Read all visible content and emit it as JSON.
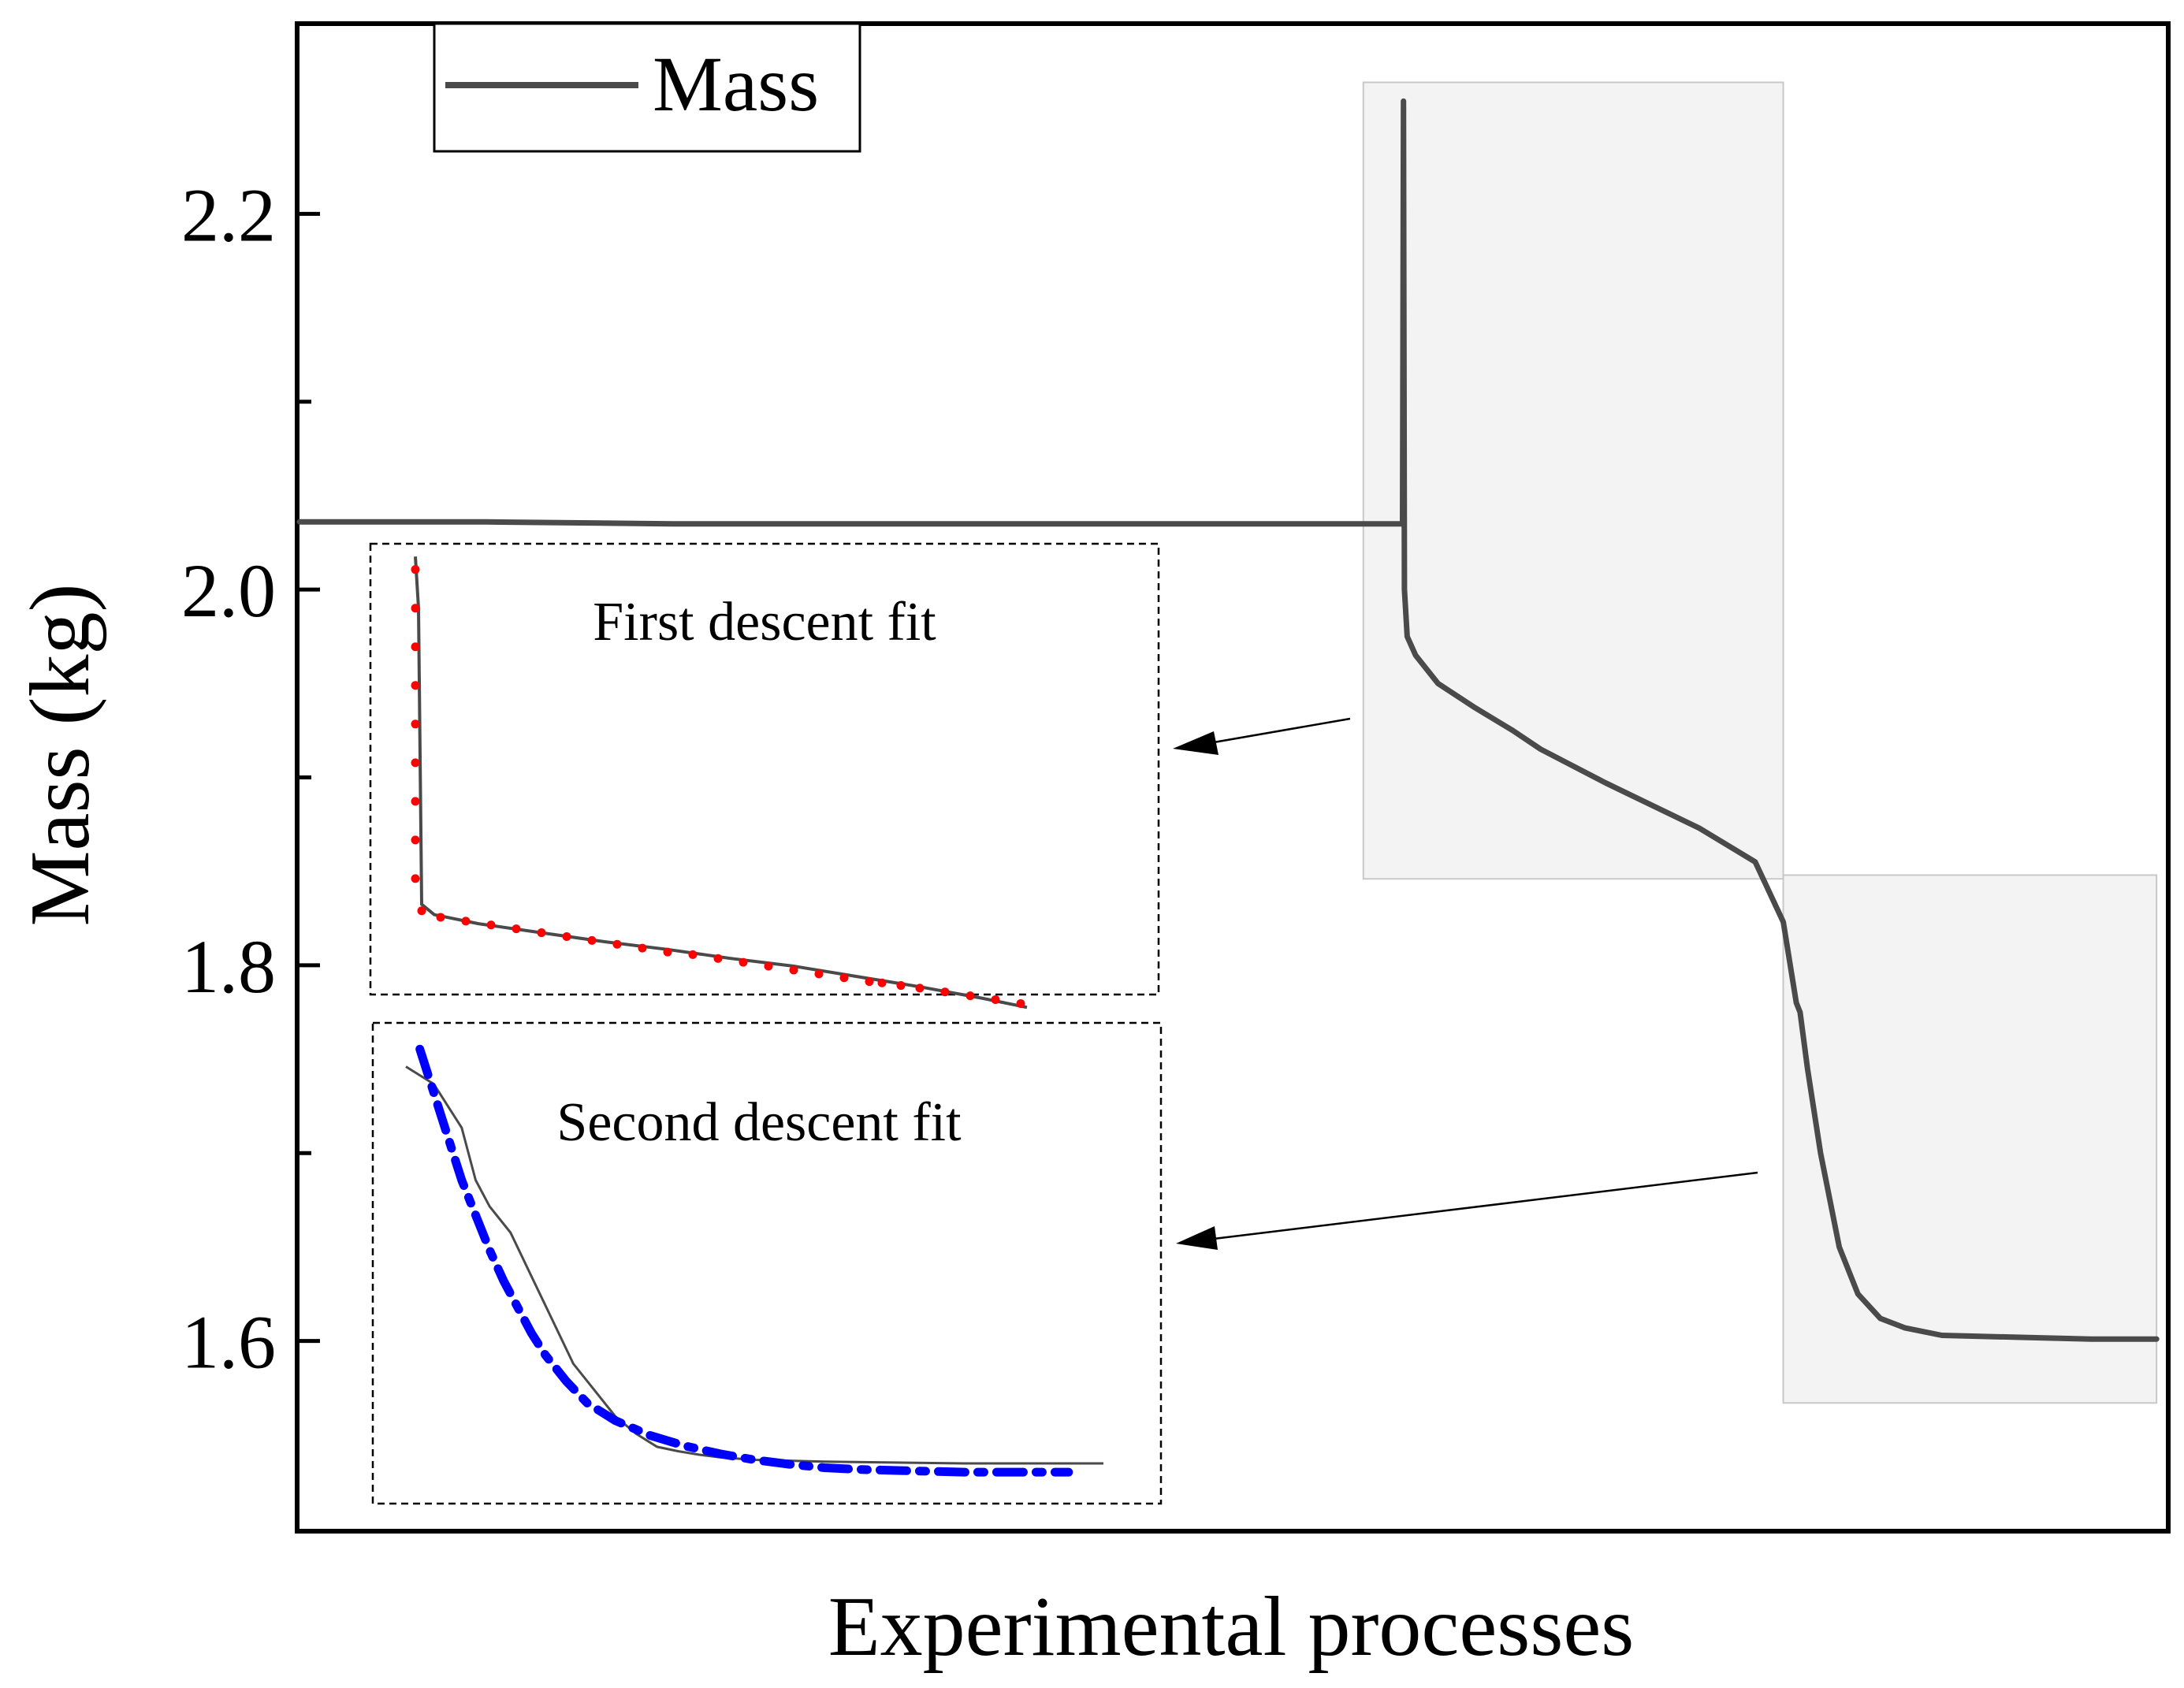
{
  "chart_data": {
    "type": "line",
    "title": "",
    "xlabel": "Experimental processes",
    "ylabel": "Mass (kg)",
    "ylim": [
      1.5,
      2.3
    ],
    "yticks": [
      1.6,
      1.8,
      2.0,
      2.2
    ],
    "ytick_labels": [
      "1.6",
      "1.8",
      "2.0",
      "2.2"
    ],
    "y_minor_ticks": [
      1.7,
      1.9,
      2.1
    ],
    "xlim": [
      0,
      100
    ],
    "grid": false,
    "legend": {
      "position": "top-left",
      "entries": [
        "Mass"
      ]
    },
    "colors": {
      "mass_line": "#4a4a4a",
      "first_fit": "#ff0000",
      "second_fit": "#0000ff",
      "highlight": "#f3f3f3",
      "highlight_border": "#c8c8c8"
    },
    "series": [
      {
        "name": "Mass",
        "x": [
          0,
          10,
          20,
          30,
          40,
          50,
          58.6,
          59.1,
          59.15,
          59.2,
          59.35,
          59.8,
          61,
          63,
          65,
          66.5,
          70,
          75,
          78,
          79.5,
          80.2,
          80.4,
          80.8,
          81.5,
          82.5,
          83.5,
          84.7,
          86,
          88,
          92,
          96,
          99.5
        ],
        "y": [
          2.036,
          2.036,
          2.035,
          2.035,
          2.035,
          2.035,
          2.035,
          2.035,
          2.26,
          2.0,
          1.975,
          1.965,
          1.95,
          1.937,
          1.925,
          1.915,
          1.897,
          1.873,
          1.855,
          1.823,
          1.78,
          1.775,
          1.745,
          1.7,
          1.65,
          1.625,
          1.612,
          1.607,
          1.603,
          1.602,
          1.601,
          1.601
        ]
      }
    ],
    "highlight_regions": [
      {
        "name": "first-descent-region",
        "x": [
          57,
          79.5
        ],
        "y": [
          1.846,
          2.27
        ]
      },
      {
        "name": "second-descent-region",
        "x": [
          79.5,
          99.5
        ],
        "y": [
          1.567,
          1.848
        ]
      }
    ],
    "insets": [
      {
        "name": "first-descent-inset",
        "title": "First descent fit",
        "fit_style": "red dots",
        "xlim": [
          0,
          100
        ],
        "ylim": [
          1.7,
          2.05
        ],
        "measured": {
          "x": [
            0,
            0.5,
            1,
            3,
            10,
            20,
            30,
            40,
            50,
            60,
            70,
            80,
            90,
            97
          ],
          "y": [
            2.04,
            2.0,
            1.77,
            1.762,
            1.755,
            1.748,
            1.741,
            1.735,
            1.728,
            1.722,
            1.714,
            1.706,
            1.697,
            1.69
          ]
        },
        "fit": {
          "x": [
            0,
            0,
            0,
            0,
            0,
            0,
            0,
            0,
            0,
            1,
            4,
            8,
            12,
            16,
            20,
            24,
            28,
            32,
            36,
            40,
            44,
            48,
            52,
            56,
            60,
            64,
            68,
            72,
            74,
            77,
            80,
            84,
            88,
            92,
            96
          ],
          "y": [
            2.03,
            2.0,
            1.97,
            1.94,
            1.91,
            1.88,
            1.85,
            1.82,
            1.79,
            1.765,
            1.76,
            1.757,
            1.754,
            1.751,
            1.748,
            1.745,
            1.742,
            1.739,
            1.736,
            1.733,
            1.731,
            1.728,
            1.725,
            1.722,
            1.719,
            1.716,
            1.713,
            1.71,
            1.709,
            1.707,
            1.705,
            1.702,
            1.699,
            1.696,
            1.693
          ]
        }
      },
      {
        "name": "second-descent-inset",
        "title": "Second descent fit",
        "fit_style": "blue dash-dot",
        "xlim": [
          0,
          100
        ],
        "ylim": [
          1.5,
          2.05
        ],
        "measured": {
          "x": [
            0,
            4,
            8,
            10,
            12,
            15,
            18,
            21,
            24,
            27,
            30,
            33,
            36,
            39,
            42,
            45,
            50,
            60,
            70,
            80,
            90,
            100
          ],
          "y": [
            2.0,
            1.98,
            1.93,
            1.87,
            1.84,
            1.81,
            1.76,
            1.71,
            1.66,
            1.63,
            1.6,
            1.58,
            1.565,
            1.56,
            1.556,
            1.553,
            1.55,
            1.548,
            1.547,
            1.546,
            1.546,
            1.546
          ]
        },
        "fit": {
          "x": [
            2,
            4,
            6,
            8,
            10,
            12,
            14,
            16,
            18,
            20,
            23,
            26,
            30,
            35,
            40,
            45,
            50,
            55,
            60,
            65,
            70,
            75,
            80,
            85,
            90,
            95
          ],
          "y": [
            2.02,
            1.97,
            1.92,
            1.87,
            1.83,
            1.79,
            1.755,
            1.725,
            1.695,
            1.67,
            1.64,
            1.615,
            1.595,
            1.578,
            1.566,
            1.557,
            1.55,
            1.545,
            1.541,
            1.539,
            1.538,
            1.537,
            1.536,
            1.536,
            1.536,
            1.536
          ]
        }
      }
    ]
  }
}
